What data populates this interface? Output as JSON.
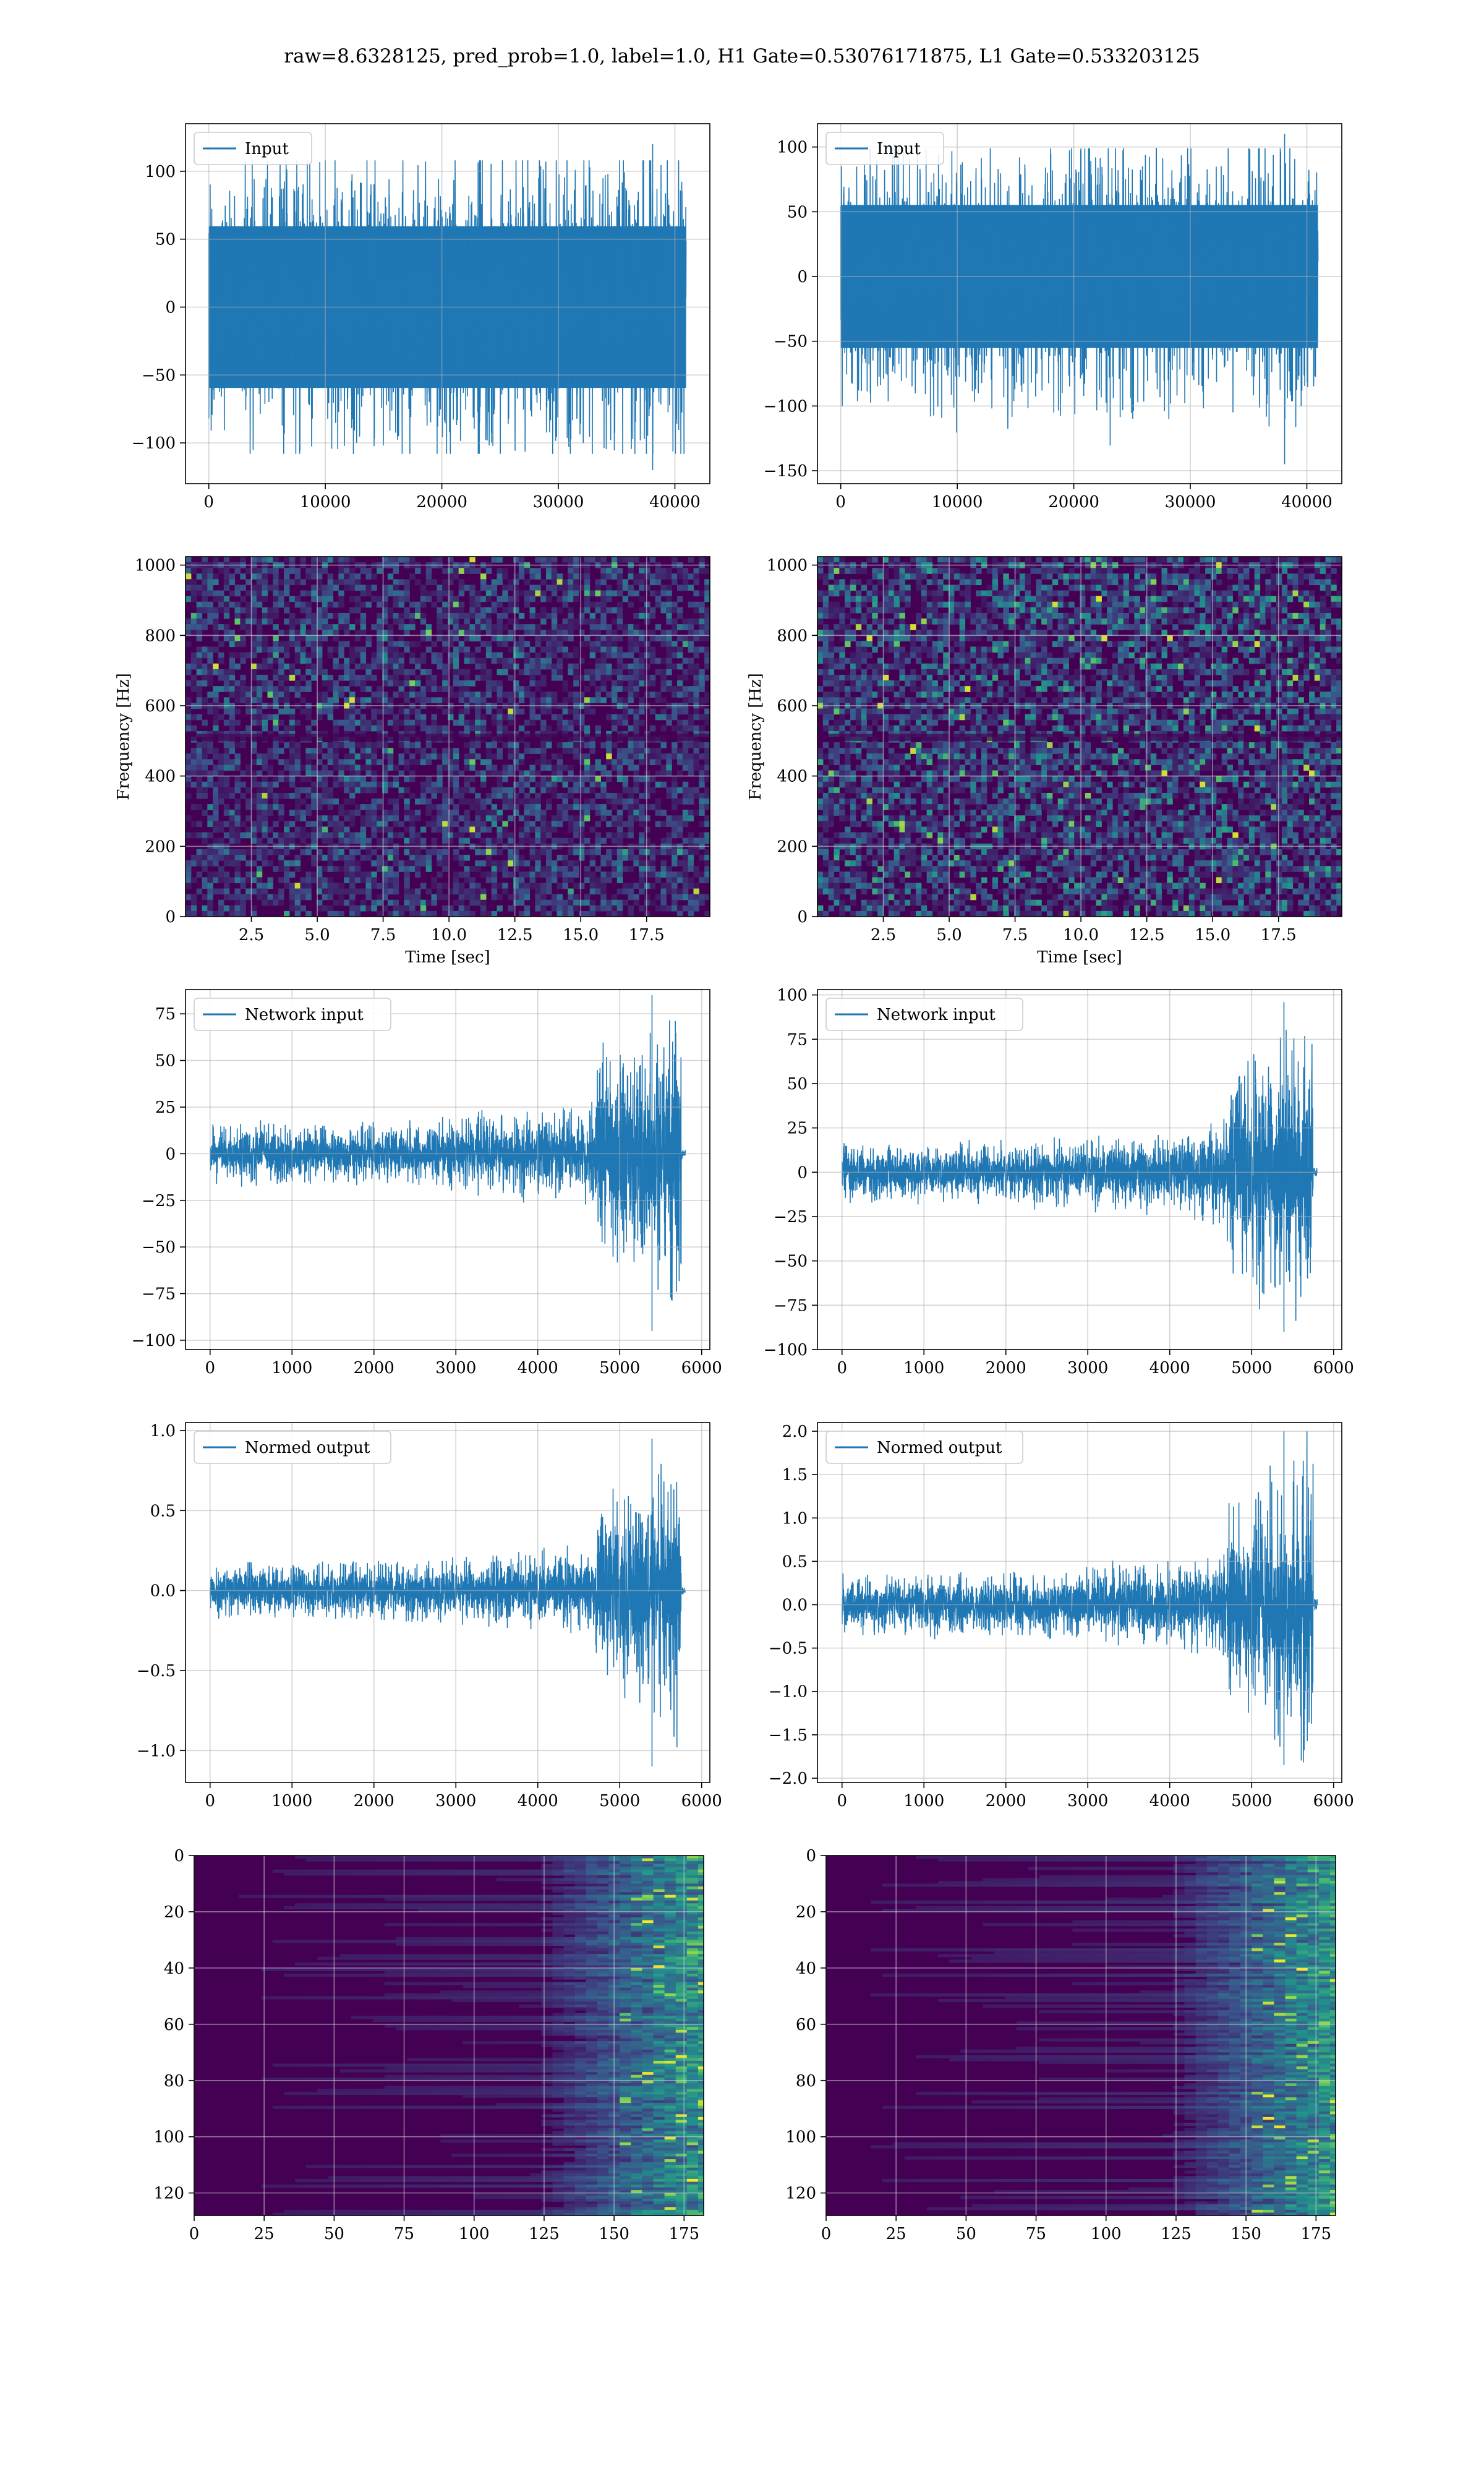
{
  "figure": {
    "suptitle": "raw=8.6328125, pred_prob=1.0, label=1.0, H1 Gate=0.53076171875, L1 Gate=0.533203125"
  },
  "colors": {
    "line": "#1f77b4",
    "grid": "#b0b0b0",
    "viridis_dark": "#440154",
    "viridis_mid": "#21918c",
    "viridis_bright": "#5ec962"
  },
  "chart_data": [
    {
      "id": "input-h1",
      "type": "line",
      "row": 0,
      "col": 0,
      "legend": "Input",
      "legend_position": "upper-left",
      "grid": true,
      "xlim": [
        -2000,
        43000
      ],
      "ylim": [
        -130,
        135
      ],
      "xticks": [
        0,
        10000,
        20000,
        30000,
        40000
      ],
      "yticks": [
        -100,
        -50,
        0,
        50,
        100
      ],
      "signal": {
        "n": 40960,
        "core_amp": 70,
        "peak_max": 120,
        "peak_min": -120,
        "chirp": false
      }
    },
    {
      "id": "input-l1",
      "type": "line",
      "row": 0,
      "col": 1,
      "legend": "Input",
      "legend_position": "upper-left",
      "grid": true,
      "xlim": [
        -2000,
        43000
      ],
      "ylim": [
        -160,
        118
      ],
      "xticks": [
        0,
        10000,
        20000,
        30000,
        40000
      ],
      "yticks": [
        -150,
        -100,
        -50,
        0,
        50,
        100
      ],
      "signal": {
        "n": 40960,
        "core_amp": 65,
        "peak_max": 110,
        "peak_min": -145,
        "chirp": false
      }
    },
    {
      "id": "spectrogram-h1",
      "type": "heatmap",
      "row": 1,
      "col": 0,
      "xlabel": "Time [sec]",
      "ylabel": "Frequency [Hz]",
      "grid": true,
      "xlim": [
        0,
        19.9
      ],
      "ylim": [
        0,
        1024
      ],
      "xticks": [
        2.5,
        5.0,
        7.5,
        10.0,
        12.5,
        15.0,
        17.5
      ],
      "yticks": [
        0,
        200,
        400,
        600,
        800,
        1000
      ],
      "colormap": "viridis",
      "intensity": "low"
    },
    {
      "id": "spectrogram-l1",
      "type": "heatmap",
      "row": 1,
      "col": 1,
      "xlabel": "Time [sec]",
      "ylabel": "Frequency [Hz]",
      "grid": true,
      "xlim": [
        0,
        19.9
      ],
      "ylim": [
        0,
        1024
      ],
      "xticks": [
        2.5,
        5.0,
        7.5,
        10.0,
        12.5,
        15.0,
        17.5
      ],
      "yticks": [
        0,
        200,
        400,
        600,
        800,
        1000
      ],
      "colormap": "viridis",
      "intensity": "high"
    },
    {
      "id": "network-input-h1",
      "type": "line",
      "row": 2,
      "col": 0,
      "legend": "Network input",
      "legend_position": "upper-left",
      "grid": true,
      "xlim": [
        -300,
        6100
      ],
      "ylim": [
        -105,
        88
      ],
      "xticks": [
        0,
        1000,
        2000,
        3000,
        4000,
        5000,
        6000
      ],
      "yticks": [
        -100,
        -75,
        -50,
        -25,
        0,
        25,
        50,
        75
      ],
      "signal": {
        "n": 5800,
        "core_amp": 12,
        "peak_max": 85,
        "peak_min": -95,
        "chirp": true,
        "chirp_start": 4700,
        "chirp_end": 5750
      }
    },
    {
      "id": "network-input-l1",
      "type": "line",
      "row": 2,
      "col": 1,
      "legend": "Network input",
      "legend_position": "upper-left",
      "grid": true,
      "xlim": [
        -300,
        6100
      ],
      "ylim": [
        -100,
        103
      ],
      "xticks": [
        0,
        1000,
        2000,
        3000,
        4000,
        5000,
        6000
      ],
      "yticks": [
        -100,
        -75,
        -50,
        -25,
        0,
        25,
        50,
        75,
        100
      ],
      "signal": {
        "n": 5800,
        "core_amp": 13,
        "peak_max": 96,
        "peak_min": -90,
        "chirp": true,
        "chirp_start": 4700,
        "chirp_end": 5750
      }
    },
    {
      "id": "normed-output-h1",
      "type": "line",
      "row": 3,
      "col": 0,
      "legend": "Normed output",
      "legend_position": "upper-left",
      "grid": true,
      "xlim": [
        -300,
        6100
      ],
      "ylim": [
        -1.2,
        1.05
      ],
      "xticks": [
        0,
        1000,
        2000,
        3000,
        4000,
        5000,
        6000
      ],
      "yticks": [
        -1.0,
        -0.5,
        0.0,
        0.5,
        1.0
      ],
      "signal": {
        "n": 5800,
        "core_amp": 0.13,
        "peak_max": 0.95,
        "peak_min": -1.1,
        "chirp": true,
        "chirp_start": 4700,
        "chirp_end": 5750
      }
    },
    {
      "id": "normed-output-l1",
      "type": "line",
      "row": 3,
      "col": 1,
      "legend": "Normed output",
      "legend_position": "upper-left",
      "grid": true,
      "xlim": [
        -300,
        6100
      ],
      "ylim": [
        -2.05,
        2.1
      ],
      "xticks": [
        0,
        1000,
        2000,
        3000,
        4000,
        5000,
        6000
      ],
      "yticks": [
        -2.0,
        -1.5,
        -1.0,
        -0.5,
        0.0,
        0.5,
        1.0,
        1.5,
        2.0
      ],
      "signal": {
        "n": 5800,
        "core_amp": 0.27,
        "peak_max": 2.0,
        "peak_min": -1.85,
        "chirp": true,
        "chirp_start": 4700,
        "chirp_end": 5750
      }
    },
    {
      "id": "feature-map-h1",
      "type": "heatmap",
      "row": 4,
      "col": 0,
      "grid": true,
      "origin": "upper",
      "xlim": [
        0,
        182
      ],
      "ylim": [
        128,
        0
      ],
      "xticks": [
        0,
        25,
        50,
        75,
        100,
        125,
        150,
        175
      ],
      "yticks": [
        0,
        20,
        40,
        60,
        80,
        100,
        120
      ],
      "colormap": "viridis",
      "activation_onset": 120
    },
    {
      "id": "feature-map-l1",
      "type": "heatmap",
      "row": 4,
      "col": 1,
      "grid": true,
      "origin": "upper",
      "xlim": [
        0,
        182
      ],
      "ylim": [
        128,
        0
      ],
      "xticks": [
        0,
        25,
        50,
        75,
        100,
        125,
        150,
        175
      ],
      "yticks": [
        0,
        20,
        40,
        60,
        80,
        100,
        120
      ],
      "colormap": "viridis",
      "activation_onset": 120
    }
  ]
}
